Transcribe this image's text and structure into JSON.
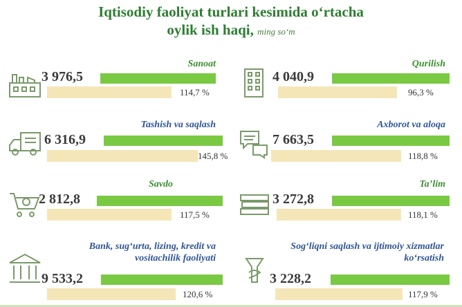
{
  "title": {
    "line1": "Iqtisodiy faoliyat turlari kesimida o‘rtacha",
    "line2": "oylik ish haqi,",
    "unit": "ming so‘m"
  },
  "colors": {
    "title": "#2e7d32",
    "salary_bar": "#7ac943",
    "growth_bar": "#f5e6b8",
    "category_green": "#3c8f2f",
    "category_blue": "#2f5597"
  },
  "chart_data": {
    "type": "bar",
    "title": "Iqtisodiy faoliyat turlari kesimida o‘rtacha oylik ish haqi, ming so‘m",
    "categories": [
      "Sanoat",
      "Qurilish",
      "Tashish va saqlash",
      "Axborot va aloqa",
      "Savdo",
      "Ta’lim",
      "Bank, sug‘urta, lizing, kredit va vositachilik faoliyati",
      "Sog‘liqni saqlash va ijtimoiy xizmatlar ko‘rsatish"
    ],
    "series": [
      {
        "values": [
          3976.5,
          4040.9,
          6316.9,
          7663.5,
          2812.8,
          3272.8,
          9533.2,
          3228.2
        ]
      },
      {
        "values": [
          114.7,
          96.3,
          145.8,
          118.8,
          117.5,
          118.1,
          120.6,
          117.9
        ]
      }
    ]
  },
  "items": [
    {
      "category": "Sanoat",
      "value": "3 976,5",
      "pct": "114,7 %",
      "icon": "factory-icon",
      "cat_color": "#3c8f2f"
    },
    {
      "category": "Qurilish",
      "value": "4 040,9",
      "pct": "96,3 %",
      "icon": "building-icon",
      "cat_color": "#3c8f2f"
    },
    {
      "category": "Tashish va saqlash",
      "value": "6 316,9",
      "pct": "145,8 %",
      "icon": "truck-icon",
      "cat_color": "#2f5597"
    },
    {
      "category": "Axborot va aloqa",
      "value": "7 663,5",
      "pct": "118,8 %",
      "icon": "chat-bubbles-icon",
      "cat_color": "#2f5597"
    },
    {
      "category": "Savdo",
      "value": "2 812,8",
      "pct": "117,5 %",
      "icon": "shopping-cart-icon",
      "cat_color": "#3c8f2f"
    },
    {
      "category": "Ta’lim",
      "value": "3 272,8",
      "pct": "118,1 %",
      "icon": "books-icon",
      "cat_color": "#3c8f2f"
    },
    {
      "category": "Bank, sug‘urta, lizing, kredit va vositachilik faoliyati",
      "value": "9 533,2",
      "pct": "120,6 %",
      "icon": "bank-icon",
      "cat_color": "#2f5597"
    },
    {
      "category": "Sog‘liqni saqlash va ijtimoiy xizmatlar ko‘rsatish",
      "value": "3 228,2",
      "pct": "117,9 %",
      "icon": "caduceus-icon",
      "cat_color": "#2f5597"
    }
  ]
}
